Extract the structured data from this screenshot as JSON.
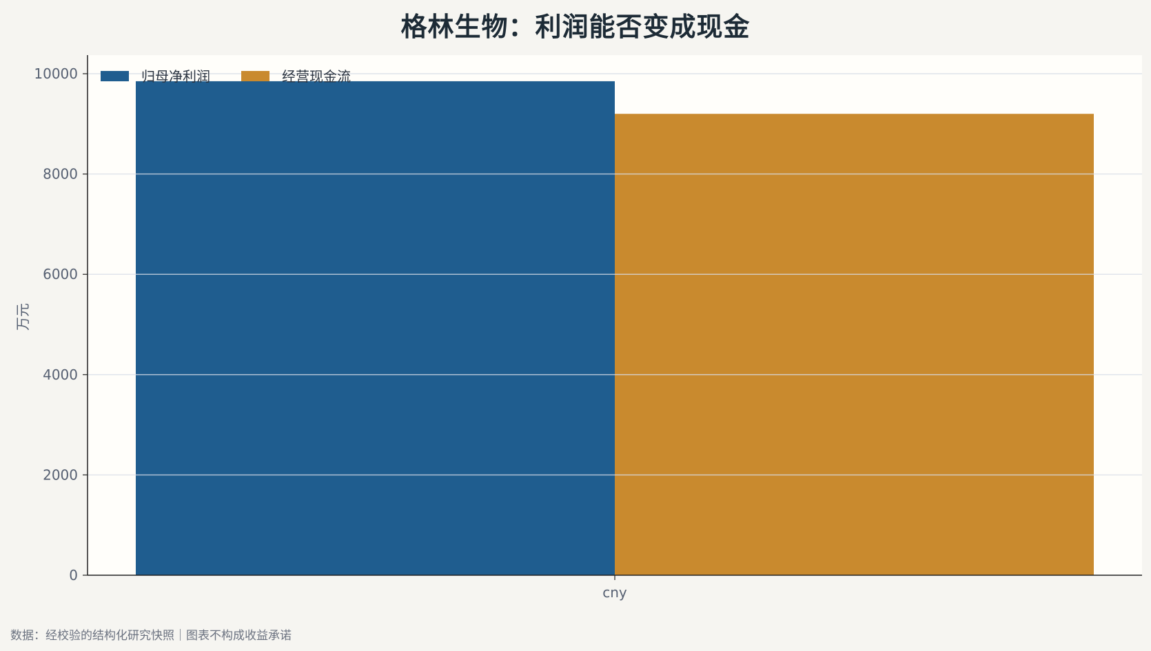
{
  "chart_data": {
    "type": "bar",
    "title": "格林生物：利润能否变成现金",
    "ylabel": "万元",
    "xlabel": "",
    "categories": [
      "cny"
    ],
    "series": [
      {
        "name": "归母净利润",
        "values": [
          9850
        ],
        "color": "#1f5d8f"
      },
      {
        "name": "经营现金流",
        "values": [
          9200
        ],
        "color": "#c98a2e"
      }
    ],
    "ylim": [
      0,
      10350
    ],
    "yticks": [
      0,
      2000,
      4000,
      6000,
      8000,
      10000
    ],
    "grid": true,
    "legend": "top-left"
  },
  "footer": "数据：经校验的结构化研究快照｜图表不构成收益承诺"
}
